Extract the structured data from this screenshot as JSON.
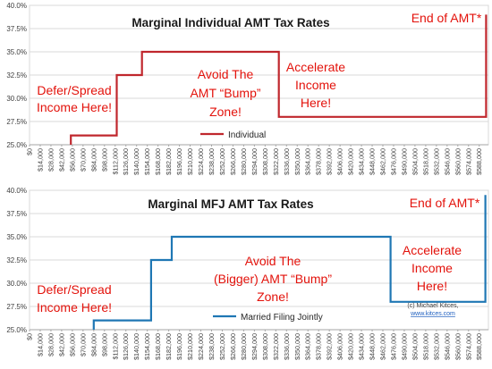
{
  "chart_data": [
    {
      "type": "line",
      "title": "Marginal Individual AMT Tax Rates",
      "xlabel": "",
      "ylabel": "",
      "ylim": [
        25,
        40
      ],
      "xlim": [
        0,
        600000
      ],
      "y_ticks": [
        "25.0%",
        "27.5%",
        "30.0%",
        "32.5%",
        "35.0%",
        "37.5%",
        "40.0%"
      ],
      "x_ticks": [
        "$0",
        "$14,000",
        "$28,000",
        "$42,000",
        "$56,000",
        "$70,000",
        "$84,000",
        "$98,000",
        "$112,000",
        "$126,000",
        "$140,000",
        "$154,000",
        "$168,000",
        "$182,000",
        "$196,000",
        "$210,000",
        "$224,000",
        "$238,000",
        "$252,000",
        "$266,000",
        "$280,000",
        "$294,000",
        "$308,000",
        "$322,000",
        "$336,000",
        "$350,000",
        "$364,000",
        "$378,000",
        "$392,000",
        "$406,000",
        "$420,000",
        "$434,000",
        "$448,000",
        "$462,000",
        "$476,000",
        "$490,000",
        "$504,000",
        "$518,000",
        "$532,000",
        "$546,000",
        "$560,000",
        "$574,000",
        "$588,000"
      ],
      "grid": true,
      "legend_position": "bottom-center",
      "series": [
        {
          "name": "Individual",
          "color": "#c0272d",
          "x": [
            54000,
            54000,
            114000,
            114000,
            147000,
            147000,
            187000,
            187000,
            326000,
            326000,
            597000,
            597000
          ],
          "y": [
            25.0,
            26.0,
            26.0,
            32.5,
            32.5,
            35.0,
            35.0,
            35.0,
            35.0,
            28.0,
            28.0,
            39.0
          ]
        }
      ],
      "annotations": [
        {
          "id": "defer",
          "lines": [
            "Defer/Spread",
            "Income Here!"
          ]
        },
        {
          "id": "avoid",
          "lines": [
            "Avoid The",
            "AMT “Bump”",
            "Zone!"
          ]
        },
        {
          "id": "accelerate",
          "lines": [
            "Accelerate",
            "Income",
            "Here!"
          ]
        },
        {
          "id": "end",
          "lines": [
            "End of AMT*"
          ]
        }
      ],
      "credit": []
    },
    {
      "type": "line",
      "title": "Marginal MFJ AMT Tax Rates",
      "xlabel": "",
      "ylabel": "",
      "ylim": [
        25,
        40
      ],
      "xlim": [
        0,
        600000
      ],
      "y_ticks": [
        "25.0%",
        "27.5%",
        "30.0%",
        "32.5%",
        "35.0%",
        "37.5%",
        "40.0%"
      ],
      "x_ticks": [
        "$0",
        "$14,000",
        "$28,000",
        "$42,000",
        "$56,000",
        "$70,000",
        "$84,000",
        "$98,000",
        "$112,000",
        "$126,000",
        "$140,000",
        "$154,000",
        "$168,000",
        "$182,000",
        "$196,000",
        "$210,000",
        "$224,000",
        "$238,000",
        "$252,000",
        "$266,000",
        "$280,000",
        "$294,000",
        "$308,000",
        "$322,000",
        "$336,000",
        "$350,000",
        "$364,000",
        "$378,000",
        "$392,000",
        "$406,000",
        "$420,000",
        "$434,000",
        "$448,000",
        "$462,000",
        "$476,000",
        "$490,000",
        "$504,000",
        "$518,000",
        "$532,000",
        "$546,000",
        "$560,000",
        "$574,000",
        "$588,000"
      ],
      "grid": true,
      "legend_position": "bottom-center",
      "series": [
        {
          "name": "Married Filing Jointly",
          "color": "#1f77b4",
          "x": [
            84000,
            84000,
            159000,
            159000,
            186000,
            186000,
            472000,
            472000,
            596000,
            596000
          ],
          "y": [
            25.0,
            26.0,
            26.0,
            32.5,
            32.5,
            35.0,
            35.0,
            28.0,
            28.0,
            39.5
          ]
        }
      ],
      "annotations": [
        {
          "id": "defer",
          "lines": [
            "Defer/Spread",
            "Income Here!"
          ]
        },
        {
          "id": "avoid",
          "lines": [
            "Avoid The",
            "(Bigger) AMT “Bump”",
            "Zone!"
          ]
        },
        {
          "id": "accelerate",
          "lines": [
            "Accelerate",
            "Income",
            "Here!"
          ]
        },
        {
          "id": "end",
          "lines": [
            "End of AMT*"
          ]
        }
      ],
      "credit": [
        "(c) Michael Kitces,",
        "www.kitces.com"
      ]
    }
  ],
  "colors": {
    "annotation": "#e3120b",
    "grid": "#d9d9d9"
  }
}
